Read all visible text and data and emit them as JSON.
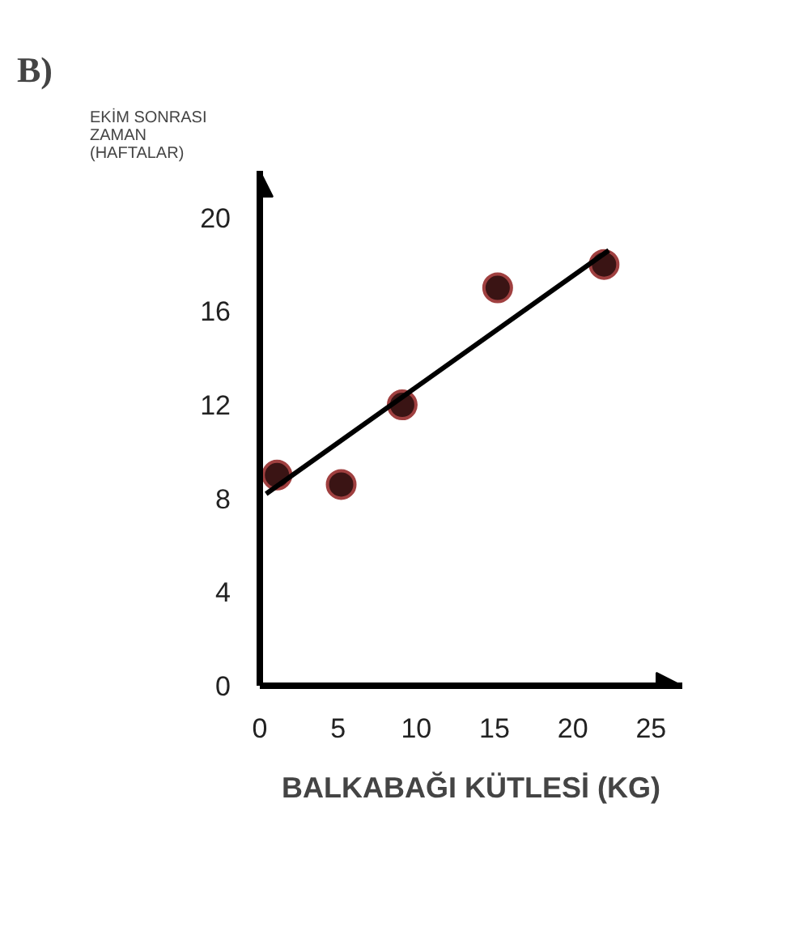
{
  "chart_data": {
    "type": "scatter",
    "title": "B)",
    "xlabel": "BALKABAĞI KÜTLESİ (KG)",
    "ylabel": "EKİM SONRASI ZAMAN (HAFTALAR)",
    "series": [
      {
        "marker": "circle",
        "color": "#3a1414",
        "x": [
          1.1,
          5.2,
          9.1,
          15.2,
          22
        ],
        "values": [
          9.0,
          8.6,
          12.0,
          17.0,
          18.0
        ]
      },
      {
        "type": "line",
        "color": "#000000",
        "x": [
          0.4,
          22.3
        ],
        "values": [
          8.2,
          18.6
        ]
      }
    ],
    "grid": false,
    "xlim": [
      0,
      27
    ],
    "ylim": [
      0,
      22
    ],
    "xticks": [
      0,
      5,
      10,
      15,
      20,
      25
    ],
    "yticks": [
      0,
      4,
      8,
      12,
      16,
      20
    ]
  }
}
